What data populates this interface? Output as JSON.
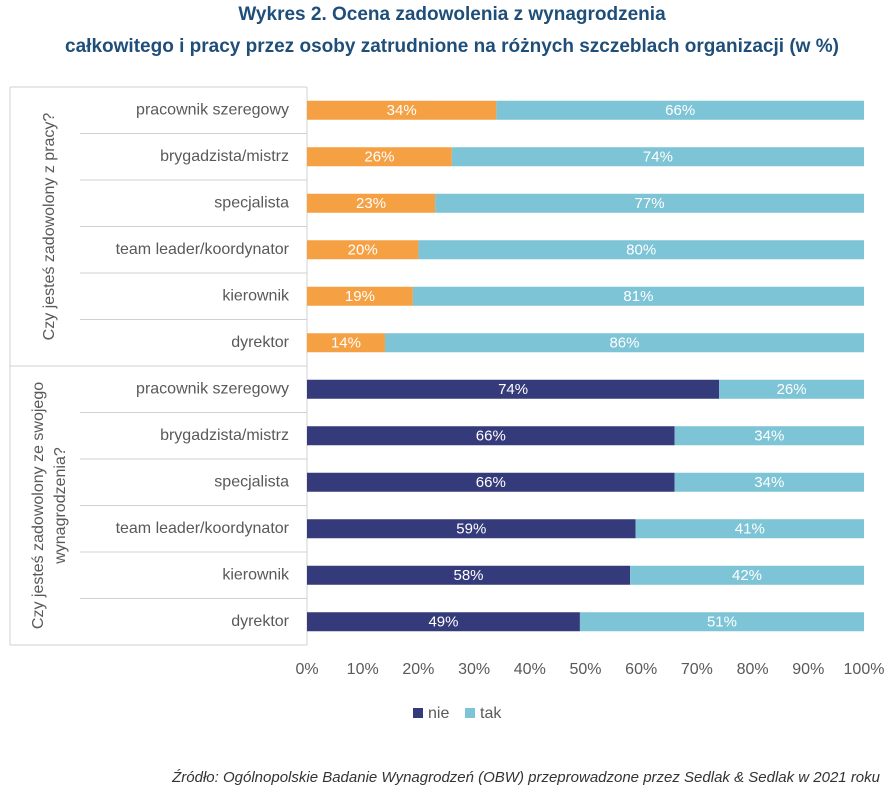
{
  "chart_data": {
    "type": "bar",
    "orientation": "horizontal",
    "stacked": true,
    "title": [
      "Wykres 2. Ocena zadowolenia z wynagrodzenia",
      "całkowitego i pracy przez osoby zatrudnione na różnych szczeblach organizacji (w %)"
    ],
    "xlim": [
      0,
      100
    ],
    "xticks": [
      {
        "value": 0,
        "label": "0%"
      },
      {
        "value": 10,
        "label": "10%"
      },
      {
        "value": 20,
        "label": "20%"
      },
      {
        "value": 30,
        "label": "30%"
      },
      {
        "value": 40,
        "label": "40%"
      },
      {
        "value": 50,
        "label": "50%"
      },
      {
        "value": 60,
        "label": "60%"
      },
      {
        "value": 70,
        "label": "70%"
      },
      {
        "value": 80,
        "label": "80%"
      },
      {
        "value": 90,
        "label": "90%"
      },
      {
        "value": 100,
        "label": "100%"
      }
    ],
    "groups": [
      {
        "label": [
          "Czy jesteś zadowolony z pracy?"
        ],
        "categories": [
          "pracownik szeregowy",
          "brygadzista/mistrz",
          "specjalista",
          "team leader/koordynator",
          "kierownik",
          "dyrektor"
        ],
        "series": [
          {
            "name": "nie",
            "color": "#f5a043",
            "values": [
              34,
              26,
              23,
              20,
              19,
              14
            ],
            "value_labels": [
              "34%",
              "26%",
              "23%",
              "20%",
              "19%",
              "14%"
            ]
          },
          {
            "name": "tak",
            "color": "#7cc4d6",
            "values": [
              66,
              74,
              77,
              80,
              81,
              86
            ],
            "value_labels": [
              "66%",
              "74%",
              "77%",
              "80%",
              "81%",
              "86%"
            ]
          }
        ]
      },
      {
        "label": [
          "Czy jesteś zadowolony ze swojego",
          "wynagrodzenia?"
        ],
        "categories": [
          "pracownik szeregowy",
          "brygadzista/mistrz",
          "specjalista",
          "team leader/koordynator",
          "kierownik",
          "dyrektor"
        ],
        "series": [
          {
            "name": "nie",
            "color": "#353a7b",
            "values": [
              74,
              66,
              66,
              59,
              58,
              49
            ],
            "value_labels": [
              "74%",
              "66%",
              "66%",
              "59%",
              "58%",
              "49%"
            ]
          },
          {
            "name": "tak",
            "color": "#7cc4d6",
            "values": [
              26,
              34,
              34,
              41,
              42,
              51
            ],
            "value_labels": [
              "26%",
              "34%",
              "34%",
              "41%",
              "42%",
              "51%"
            ]
          }
        ]
      }
    ],
    "legend": {
      "position": "bottom",
      "entries": [
        {
          "name": "nie",
          "color": "#353a7b"
        },
        {
          "name": "tak",
          "color": "#7cc4d6"
        }
      ]
    },
    "source": "Źródło: Ogólnopolskie Badanie Wynagrodzeń (OBW) przeprowadzone przez Sedlak & Sedlak w 2021 roku"
  }
}
